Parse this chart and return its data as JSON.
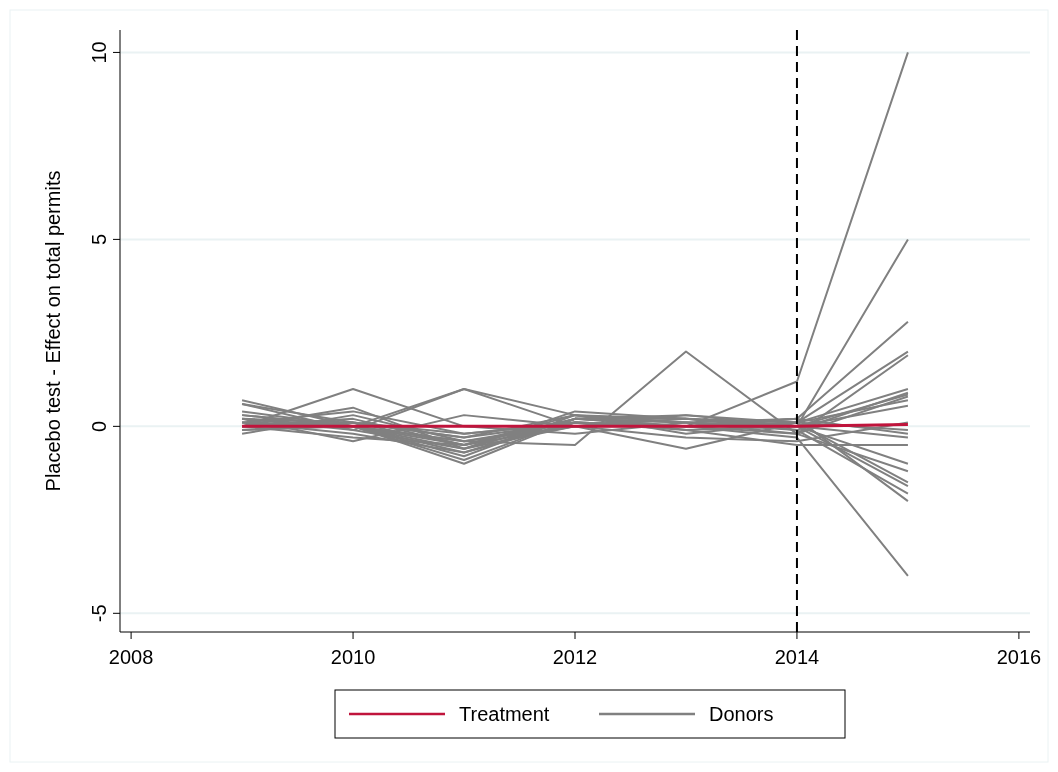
{
  "chart_data": {
    "type": "line",
    "ylabel": "Placebo test - Effect on total permits",
    "x": [
      2009,
      2010,
      2011,
      2012,
      2013,
      2014,
      2015
    ],
    "xlim": [
      2007.9,
      2016.1
    ],
    "xticks": [
      2008,
      2010,
      2012,
      2014,
      2016
    ],
    "ylim": [
      -5.5,
      10.6
    ],
    "yticks": [
      -5,
      0,
      5,
      10
    ],
    "grid": "y",
    "legend": "bottom",
    "line_style": "solid",
    "marker": "none",
    "ref_lines": [
      {
        "axis": "x",
        "value": 2014,
        "color": "#000000",
        "line_style": "dashed"
      }
    ],
    "series": [
      {
        "name": "Donors",
        "color": "#808080",
        "values": [
          0.3,
          0.0,
          -0.5,
          0.2,
          0.0,
          1.2,
          10
        ]
      },
      {
        "color": "#808080",
        "values": [
          0.6,
          0.1,
          -0.3,
          0.3,
          0.2,
          0.0,
          5
        ]
      },
      {
        "color": "#808080",
        "values": [
          0.0,
          1.0,
          0.0,
          -0.2,
          0.1,
          0.2,
          2.8
        ]
      },
      {
        "color": "#808080",
        "values": [
          -0.1,
          0.0,
          1.0,
          0.3,
          -0.2,
          0.1,
          2.0
        ]
      },
      {
        "color": "#808080",
        "values": [
          0.7,
          0.0,
          -0.8,
          0.3,
          0.1,
          -0.2,
          1.9
        ]
      },
      {
        "color": "#808080",
        "values": [
          0.2,
          -0.4,
          0.3,
          0.0,
          0.3,
          0.1,
          1.0
        ]
      },
      {
        "color": "#808080",
        "values": [
          0.0,
          0.5,
          -0.6,
          0.4,
          0.2,
          -0.1,
          0.9
        ]
      },
      {
        "color": "#808080",
        "values": [
          0.1,
          0.0,
          -1.0,
          0.2,
          0.0,
          0.0,
          0.85
        ]
      },
      {
        "color": "#808080",
        "values": [
          -0.2,
          0.3,
          -0.4,
          -0.5,
          2.0,
          -0.2,
          0.8
        ]
      },
      {
        "color": "#808080",
        "values": [
          0.4,
          0.0,
          -0.7,
          0.1,
          0.0,
          0.1,
          0.7
        ]
      },
      {
        "color": "#808080",
        "values": [
          0.0,
          -0.3,
          -0.5,
          0.2,
          0.3,
          0.0,
          0.55
        ]
      },
      {
        "color": "#808080",
        "values": [
          0.2,
          -0.1,
          1.0,
          0.0,
          -0.3,
          -0.4,
          0.1
        ]
      },
      {
        "color": "#808080",
        "values": [
          0.0,
          0.0,
          -0.4,
          0.0,
          -0.6,
          0.1,
          -0.1
        ]
      },
      {
        "color": "#808080",
        "values": [
          0.1,
          0.4,
          -0.2,
          0.1,
          0.0,
          0.2,
          -0.2
        ]
      },
      {
        "color": "#808080",
        "values": [
          0.6,
          -0.1,
          -0.6,
          0.2,
          0.2,
          0.0,
          -0.3
        ]
      },
      {
        "color": "#808080",
        "values": [
          0.0,
          0.2,
          -0.5,
          0.3,
          -0.1,
          -0.5,
          -0.5
        ]
      },
      {
        "color": "#808080",
        "values": [
          0.2,
          0.0,
          -0.9,
          0.2,
          0.1,
          0.0,
          -1.0
        ]
      },
      {
        "color": "#808080",
        "values": [
          -0.1,
          0.1,
          -0.3,
          0.1,
          0.0,
          -0.2,
          -1.2
        ]
      },
      {
        "color": "#808080",
        "values": [
          0.3,
          0.0,
          -0.6,
          0.0,
          0.2,
          0.1,
          -1.5
        ]
      },
      {
        "color": "#808080",
        "values": [
          0.0,
          0.1,
          -0.2,
          0.1,
          -0.1,
          0.0,
          -1.6
        ]
      },
      {
        "color": "#808080",
        "values": [
          0.1,
          -0.2,
          -0.7,
          0.2,
          0.1,
          -0.1,
          -1.8
        ]
      },
      {
        "color": "#808080",
        "values": [
          0.0,
          0.0,
          -0.4,
          0.1,
          0.0,
          0.2,
          -2.0
        ]
      },
      {
        "color": "#808080",
        "values": [
          0.2,
          0.1,
          -0.5,
          0.0,
          0.0,
          -0.3,
          -4.0
        ]
      },
      {
        "name": "Treatment",
        "color": "#c0143c",
        "values": [
          0,
          0,
          0,
          0,
          0,
          0,
          0.05
        ]
      }
    ]
  }
}
